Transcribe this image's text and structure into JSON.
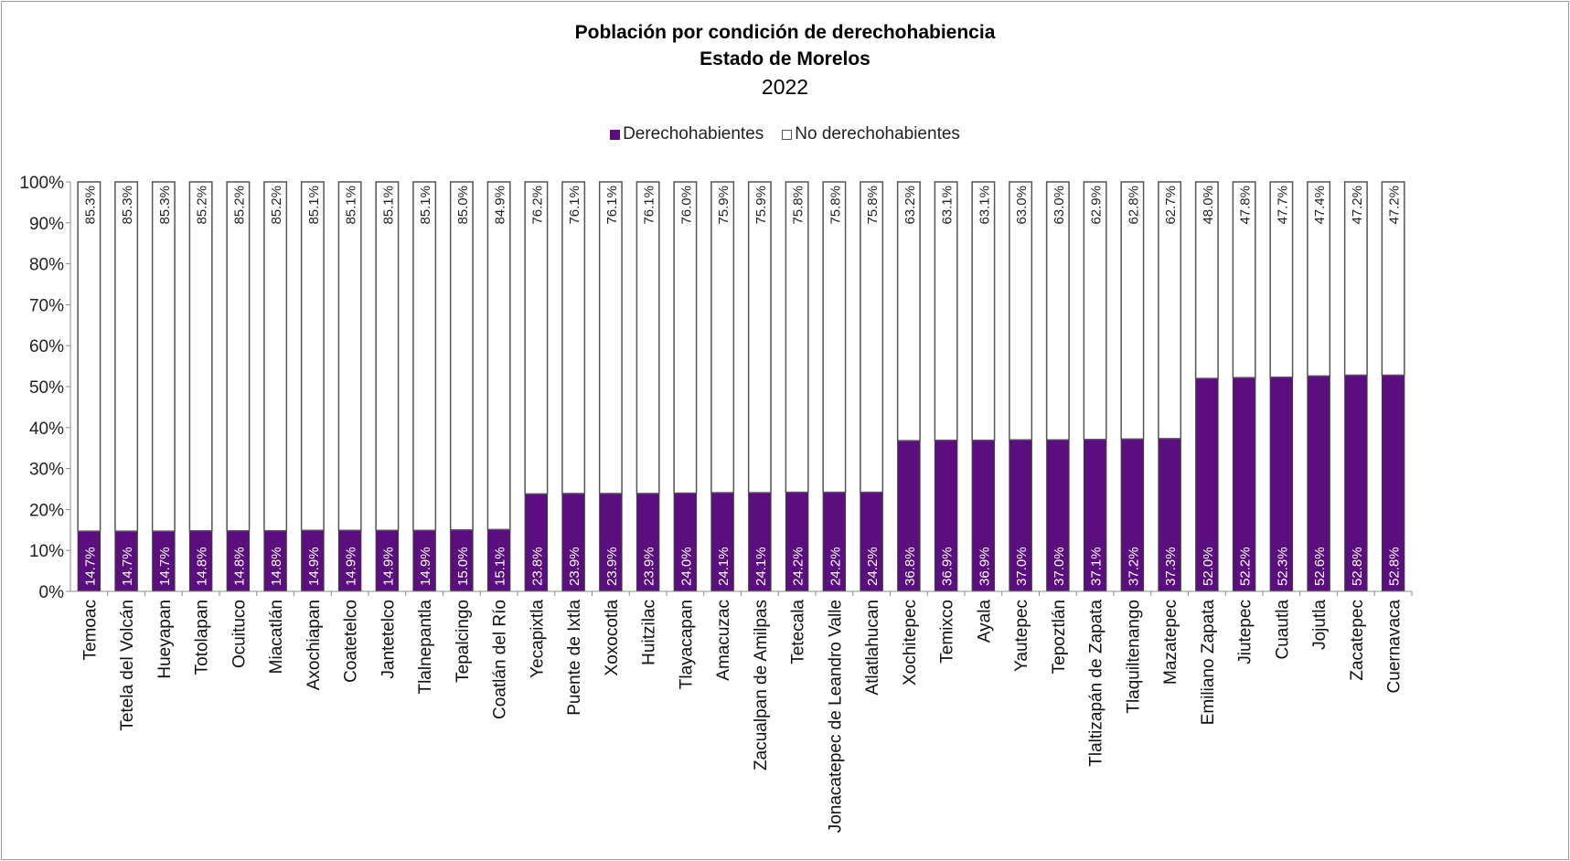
{
  "chart_data": {
    "type": "bar",
    "stacked": true,
    "percent_stacked": true,
    "title": "Población por condición de derechohabiencia",
    "subtitle": "Estado de Morelos",
    "year": "2022",
    "ylim": [
      0,
      100
    ],
    "yticks": [
      "0%",
      "10%",
      "20%",
      "30%",
      "40%",
      "50%",
      "60%",
      "70%",
      "80%",
      "90%",
      "100%"
    ],
    "legend_position": "top",
    "categories": [
      "Temoac",
      "Tetela del Volcán",
      "Hueyapan",
      "Totolapan",
      "Ocuituco",
      "Miacatlán",
      "Axochiapan",
      "Coatetelco",
      "Jantetelco",
      "Tlalnepantla",
      "Tepalcingo",
      "Coatlán del Río",
      "Yecapixtla",
      "Puente de Ixtla",
      "Xoxocotla",
      "Huitzilac",
      "Tlayacapan",
      "Amacuzac",
      "Zacualpan de Amilpas",
      "Tetecala",
      "Jonacatepec de Leandro Valle",
      "Atlatlahucan",
      "Xochitepec",
      "Temixco",
      "Ayala",
      "Yautepec",
      "Tepoztlán",
      "Tlaltizapán de Zapata",
      "Tlaquiltenango",
      "Mazatepec",
      "Emiliano Zapata",
      "Jiutepec",
      "Cuautla",
      "Jojutla",
      "Zacatepec",
      "Cuernavaca"
    ],
    "series": [
      {
        "name": "Derechohabientes",
        "color": "#5B0F7E",
        "values": [
          14.7,
          14.7,
          14.7,
          14.8,
          14.8,
          14.8,
          14.9,
          14.9,
          14.9,
          14.9,
          15.0,
          15.1,
          23.8,
          23.9,
          23.9,
          23.9,
          24.0,
          24.1,
          24.1,
          24.2,
          24.2,
          24.2,
          36.8,
          36.9,
          36.9,
          37.0,
          37.0,
          37.1,
          37.2,
          37.3,
          52.0,
          52.2,
          52.3,
          52.6,
          52.8,
          52.8
        ],
        "labels": [
          "14.7%",
          "14.7%",
          "14.7%",
          "14.8%",
          "14.8%",
          "14.8%",
          "14.9%",
          "14.9%",
          "14.9%",
          "14.9%",
          "15.0%",
          "15.1%",
          "23.8%",
          "23.9%",
          "23.9%",
          "23.9%",
          "24.0%",
          "24.1%",
          "24.1%",
          "24.2%",
          "24.2%",
          "24.2%",
          "36.8%",
          "36.9%",
          "36.9%",
          "37.0%",
          "37.0%",
          "37.1%",
          "37.2%",
          "37.3%",
          "52.0%",
          "52.2%",
          "52.3%",
          "52.6%",
          "52.8%",
          "52.8%"
        ]
      },
      {
        "name": "No derechohabientes",
        "color": "#FFFFFF",
        "values": [
          85.3,
          85.3,
          85.3,
          85.2,
          85.2,
          85.2,
          85.1,
          85.1,
          85.1,
          85.1,
          85.0,
          84.9,
          76.2,
          76.1,
          76.1,
          76.1,
          76.0,
          75.9,
          75.9,
          75.8,
          75.8,
          75.8,
          63.2,
          63.1,
          63.1,
          63.0,
          63.0,
          62.9,
          62.8,
          62.7,
          48.0,
          47.8,
          47.7,
          47.4,
          47.2,
          47.2
        ],
        "labels": [
          "85.3%",
          "85.3%",
          "85.3%",
          "85.2%",
          "85.2%",
          "85.2%",
          "85.1%",
          "85.1%",
          "85.1%",
          "85.1%",
          "85.0%",
          "84.9%",
          "76.2%",
          "76.1%",
          "76.1%",
          "76.1%",
          "76.0%",
          "75.9%",
          "75.9%",
          "75.8%",
          "75.8%",
          "75.8%",
          "63.2%",
          "63.1%",
          "63.1%",
          "63.0%",
          "63.0%",
          "62.9%",
          "62.8%",
          "62.7%",
          "48.0%",
          "47.8%",
          "47.7%",
          "47.4%",
          "47.2%",
          "47.2%"
        ]
      }
    ]
  }
}
